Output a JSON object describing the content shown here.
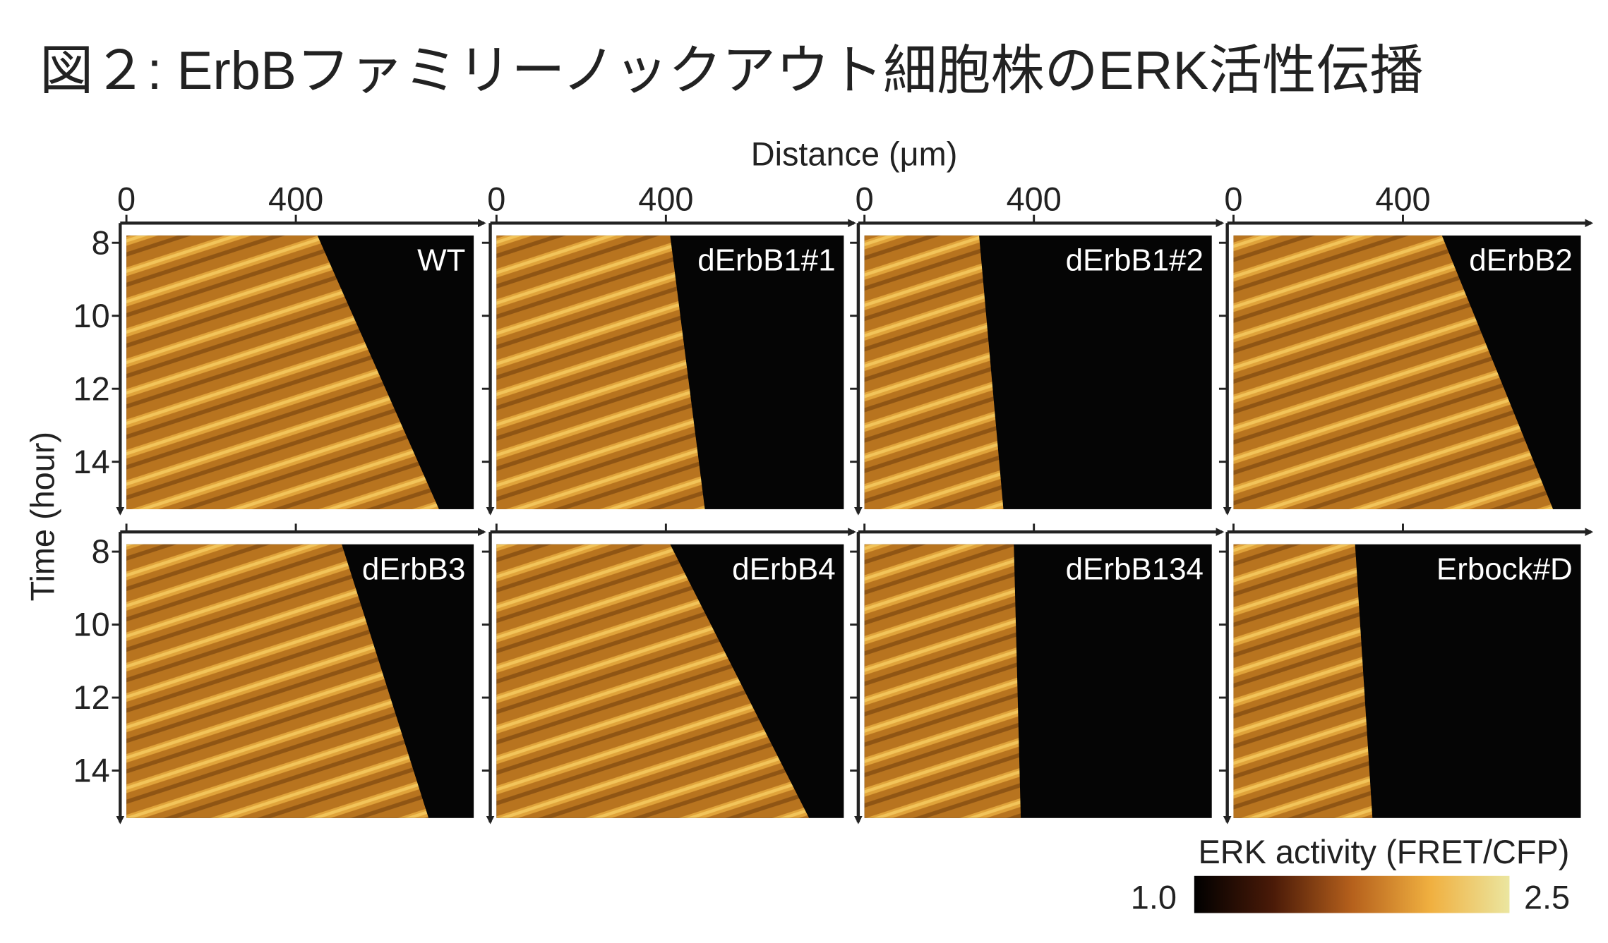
{
  "title": "図２: ErbBファミリーノックアウト細胞株のERK活性伝播",
  "x_axis_label": "Distance (μm)",
  "y_axis_label": "Time (hour)",
  "xlim": [
    0,
    820
  ],
  "xticks": [
    0,
    400
  ],
  "ylim": [
    7.8,
    15.3
  ],
  "yticks": [
    8,
    10,
    12,
    14
  ],
  "panels": [
    "WT",
    "dErbB1#1",
    "dErbB1#2",
    "dErbB2",
    "dErbB3",
    "dErbB4",
    "dErbB134",
    "Erbock#D"
  ],
  "colorbar": {
    "label": "ERK activity (FRET/CFP)",
    "range": [
      {
        "value": 1,
        "label": "1.0"
      },
      2.5
    ]
  }
}
